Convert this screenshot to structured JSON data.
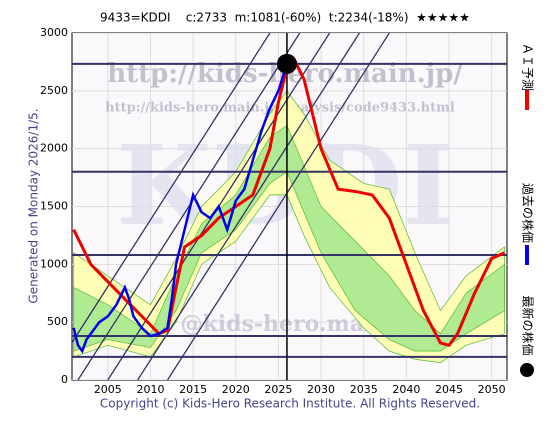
{
  "chart_data": {
    "type": "line",
    "title": "9433=KDDI    c:2733  m:1081(-60%)  t:2234(-18%)  ★★★★★",
    "side_label": "Generated on Monday 2026/1/5.",
    "footer": "Copyright (c) Kids-Hero Research Institute. All Rights Reserved.",
    "watermarks": [
      "http://kids-hero.main.jp/",
      "http://kids-hero.main.jp/analysis/code9433.html",
      "KDDI",
      "@kids-hero.main.jp"
    ],
    "xlim": [
      2000.8,
      2051.8
    ],
    "xticks": [
      2005,
      2010,
      2015,
      2020,
      2025,
      2030,
      2035,
      2040,
      2045,
      2050
    ],
    "ylim": [
      0,
      3000
    ],
    "yticks": [
      0,
      500,
      1000,
      1500,
      2000,
      2500,
      3000
    ],
    "grid": true,
    "hlines": [
      2733,
      1800,
      1081,
      380,
      200
    ],
    "hline_color": "#333366",
    "vline": 2026,
    "trend_lines": [
      {
        "x": [
          1998,
          2024
        ],
        "values": [
          0,
          3000
        ]
      },
      {
        "x": [
          2001.5,
          2027.5
        ],
        "values": [
          0,
          3000
        ]
      },
      {
        "x": [
          2005,
          2031
        ],
        "values": [
          0,
          3000
        ]
      },
      {
        "x": [
          2008.5,
          2034.5
        ],
        "values": [
          0,
          3000
        ]
      },
      {
        "x": [
          2012,
          2038
        ],
        "values": [
          0,
          3000
        ]
      }
    ],
    "bands": [
      {
        "color": "#ffffb0",
        "x": [
          2001,
          2005,
          2010,
          2013,
          2016,
          2020,
          2024,
          2026,
          2028,
          2031,
          2035,
          2038,
          2041,
          2044,
          2047,
          2051.5
        ],
        "upper": [
          1100,
          900,
          650,
          1050,
          1500,
          1800,
          2300,
          2500,
          2300,
          1900,
          1700,
          1650,
          1100,
          600,
          900,
          1150
        ],
        "lower": [
          200,
          300,
          200,
          500,
          1000,
          1200,
          1600,
          1600,
          1250,
          800,
          450,
          250,
          180,
          150,
          300,
          400
        ]
      },
      {
        "color": "#a8e890",
        "x": [
          2001,
          2005,
          2010,
          2013,
          2016,
          2020,
          2024,
          2026,
          2030,
          2034,
          2038,
          2041,
          2044,
          2047,
          2051.5
        ],
        "upper": [
          800,
          650,
          400,
          900,
          1350,
          1600,
          2100,
          2200,
          1500,
          1200,
          900,
          600,
          400,
          750,
          1000
        ],
        "lower": [
          250,
          350,
          280,
          600,
          1100,
          1300,
          1700,
          1800,
          1100,
          600,
          350,
          250,
          250,
          400,
          600
        ]
      }
    ],
    "series": [
      {
        "name": "ＡＩ予測",
        "color": "#ee0000",
        "x": [
          2001,
          2003,
          2005,
          2007,
          2009,
          2011,
          2012,
          2013,
          2014,
          2016,
          2018,
          2020,
          2022,
          2024,
          2025,
          2026,
          2027,
          2028,
          2030,
          2032,
          2034,
          2036,
          2038,
          2040,
          2042,
          2044,
          2045,
          2046,
          2048,
          2050,
          2051.5
        ],
        "values": [
          1300,
          1000,
          850,
          700,
          550,
          400,
          430,
          800,
          1150,
          1250,
          1400,
          1500,
          1600,
          2000,
          2400,
          2700,
          2750,
          2600,
          2000,
          1650,
          1630,
          1600,
          1400,
          1000,
          600,
          320,
          300,
          400,
          750,
          1050,
          1100
        ]
      },
      {
        "name": "過去の株価",
        "color": "#0000ee",
        "x": [
          2001,
          2001.5,
          2002,
          2002.5,
          2003,
          2004,
          2005,
          2006,
          2007,
          2007.5,
          2008,
          2009,
          2010,
          2011,
          2012,
          2012.5,
          2013,
          2014,
          2015,
          2016,
          2017,
          2018,
          2019,
          2020,
          2021,
          2022,
          2023,
          2024,
          2025,
          2026
        ],
        "values": [
          450,
          300,
          250,
          350,
          400,
          500,
          550,
          650,
          800,
          700,
          550,
          450,
          380,
          400,
          450,
          700,
          1000,
          1300,
          1600,
          1450,
          1400,
          1500,
          1300,
          1550,
          1650,
          1900,
          2150,
          2350,
          2500,
          2733
        ]
      },
      {
        "name": "最新の株価",
        "color": "#000000",
        "x": [
          2026
        ],
        "values": [
          2733
        ]
      }
    ]
  }
}
